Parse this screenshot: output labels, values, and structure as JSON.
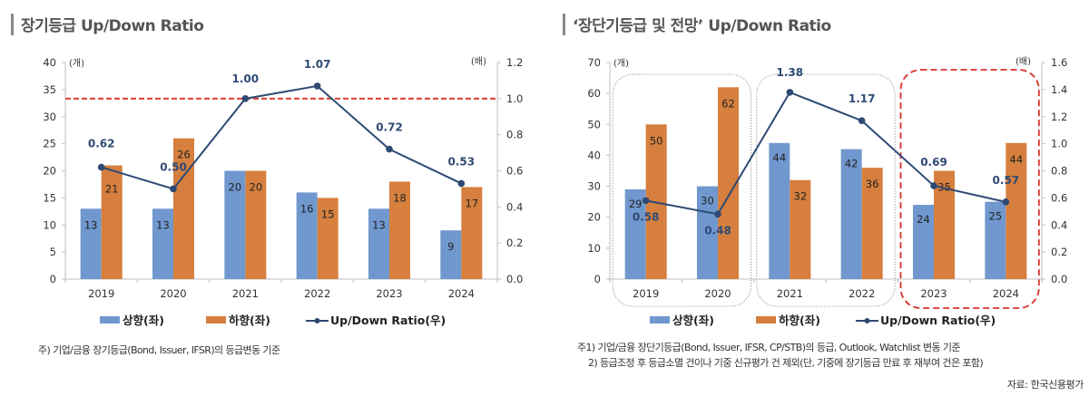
{
  "colors": {
    "up": "#7098cf",
    "down": "#d67f3e",
    "ratio": "#2e4a74",
    "ref_line": "#d9302a",
    "highlight_box": "#d9302a",
    "group_box": "#8a8a8a"
  },
  "left": {
    "title": "장기등급 Up/Down Ratio",
    "note": "주) 기업/금융 장기등급(Bond, Issuer, IFSR)의 등급변동 기준"
  },
  "right": {
    "title": "‘장단기등급 및 전망’ Up/Down Ratio",
    "notes": [
      "주1) 기업/금융 장단기등급(Bond, Issuer, IFSR, CP/STB)의 등급, Outlook, Watchlist 변동 기준",
      "2) 등급조정 후 등급소멸 건이나 기중 신규평가 건 제외(단, 기중에 장기등급 만료 후 재부여 건은 포함)"
    ],
    "source": "자료: 한국신용평가"
  },
  "chart_data": [
    {
      "type": "bar",
      "title": "장기등급 Up/Down Ratio",
      "categories": [
        "2019",
        "2020",
        "2021",
        "2022",
        "2023",
        "2024"
      ],
      "y_unit_label": "(개)",
      "y2_unit_label": "(배)",
      "ylim": [
        0,
        40
      ],
      "yticks": [
        "0",
        "5",
        "10",
        "15",
        "20",
        "25",
        "30",
        "35",
        "40"
      ],
      "y2lim": [
        0,
        1.2
      ],
      "y2ticks": [
        "0.0",
        "0.2",
        "0.4",
        "0.6",
        "0.8",
        "1.0",
        "1.2"
      ],
      "series": [
        {
          "name": "상향(좌)",
          "kind": "bar",
          "axis": "left",
          "values": [
            13,
            13,
            20,
            16,
            13,
            9
          ]
        },
        {
          "name": "하향(좌)",
          "kind": "bar",
          "axis": "left",
          "values": [
            21,
            26,
            20,
            15,
            18,
            17
          ]
        },
        {
          "name": "Up/Down Ratio(우)",
          "kind": "line",
          "axis": "right",
          "values": [
            0.62,
            0.5,
            1.0,
            1.07,
            0.72,
            0.53
          ],
          "labels": [
            "0.62",
            "0.50",
            "1.00",
            "1.07",
            "0.72",
            "0.53"
          ]
        }
      ],
      "reference_line": {
        "axis": "right",
        "value": 1.0,
        "style": "dashed"
      },
      "legend": [
        "상향(좌)",
        "하향(좌)",
        "Up/Down Ratio(우)"
      ],
      "legend_position": "bottom",
      "grid": false
    },
    {
      "type": "bar",
      "title": "‘장단기등급 및 전망’ Up/Down Ratio",
      "categories": [
        "2019",
        "2020",
        "2021",
        "2022",
        "2023",
        "2024"
      ],
      "y_unit_label": "(개)",
      "y2_unit_label": "(배)",
      "ylim": [
        0,
        70
      ],
      "yticks": [
        "0",
        "10",
        "20",
        "30",
        "40",
        "50",
        "60",
        "70"
      ],
      "y2lim": [
        0,
        1.6
      ],
      "y2ticks": [
        "0.0",
        "0.2",
        "0.4",
        "0.6",
        "0.8",
        "1.0",
        "1.2",
        "1.4",
        "1.6"
      ],
      "series": [
        {
          "name": "상향(좌)",
          "kind": "bar",
          "axis": "left",
          "values": [
            29,
            30,
            44,
            42,
            24,
            25
          ]
        },
        {
          "name": "하향(좌)",
          "kind": "bar",
          "axis": "left",
          "values": [
            50,
            62,
            32,
            36,
            35,
            44
          ]
        },
        {
          "name": "Up/Down Ratio(우)",
          "kind": "line",
          "axis": "right",
          "values": [
            0.58,
            0.48,
            1.38,
            1.17,
            0.69,
            0.57
          ],
          "labels": [
            "0.58",
            "0.48",
            "1.38",
            "1.17",
            "0.69",
            "0.57"
          ]
        }
      ],
      "group_boxes": [
        {
          "categories": [
            "2019",
            "2020"
          ],
          "style": "dotted"
        },
        {
          "categories": [
            "2021",
            "2022"
          ],
          "style": "dotted"
        },
        {
          "categories": [
            "2023",
            "2024"
          ],
          "style": "dashed-red"
        }
      ],
      "legend": [
        "상향(좌)",
        "하향(좌)",
        "Up/Down Ratio(우)"
      ],
      "legend_position": "bottom",
      "grid": false
    }
  ]
}
